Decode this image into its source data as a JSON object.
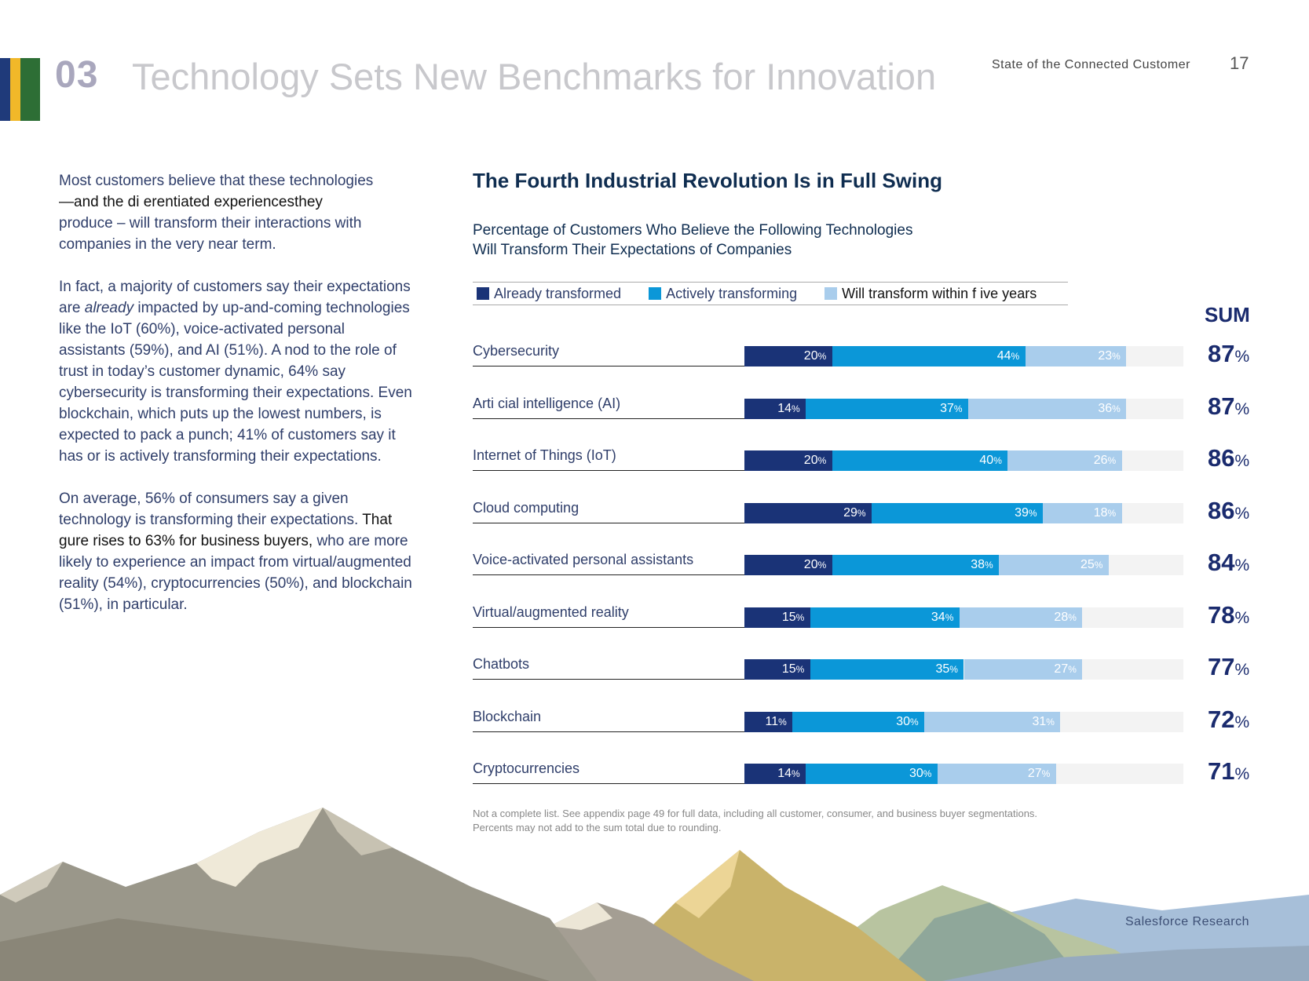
{
  "header": {
    "chapter_number": "03",
    "chapter_title": "Technology Sets New Benchmarks for Innovation",
    "report_name": "State of the Connected Customer",
    "page_number": "17"
  },
  "colors": {
    "stripe1": "#1f3a7a",
    "stripe2": "#f1b829",
    "stripe3": "#2d6e35",
    "stripe4": "#2d6e35",
    "already": "#1a3377",
    "actively": "#0b97d8",
    "within_five": "#a9cdec"
  },
  "body": {
    "p1_a": "Most customers believe that these technologies",
    "p1_b": "—and the di  erentiated experiencesthey",
    "p1_c": "produce – will transform their interactions with companies in the very near term.",
    "p2_a": "In fact, a majority of customers say their expectations are",
    "p2_em": "already",
    "p2_b": "impacted by up-and-coming technologies like the IoT (60%), voice-activated personal assistants (59%), and AI (51%). A nod to the role of trust in today’s customer dynamic, 64% say cybersecurity is transforming their expectations. Even blockchain, which puts up the lowest numbers, is expected to pack a punch; 41% of customers say it has or is actively transforming their expectations.",
    "p3_a": "On average, 56% of consumers say a given technology is transforming their expectations.",
    "p3_dark": "That   gure rises to 63%  for business buyers,",
    "p3_b": "who are more likely to experience an impact from virtual/augmented reality (54%), cryptocurrencies (50%), and blockchain (51%), in particular."
  },
  "chart_data": {
    "type": "bar",
    "orientation": "horizontal",
    "stacked": true,
    "title": "The Fourth Industrial Revolution Is in Full Swing",
    "subtitle_line1": "Percentage of Customers Who Believe the Following Technologies",
    "subtitle_line2": "Will Transform Their Expectations of Companies",
    "sum_header": "SUM",
    "unit": "%",
    "xlim": [
      0,
      100
    ],
    "legend": [
      "Already transformed",
      "Actively transforming",
      "Will transform within f ive years"
    ],
    "categories": [
      "Cybersecurity",
      "Arti  cial intelligence (AI)",
      "Internet of Things (IoT)",
      "Cloud computing",
      "Voice-activated personal assistants",
      "Virtual/augmented reality",
      "Chatbots",
      "Blockchain",
      "Cryptocurrencies"
    ],
    "series": [
      {
        "name": "Already transformed",
        "values": [
          20,
          14,
          20,
          29,
          20,
          15,
          15,
          11,
          14
        ]
      },
      {
        "name": "Actively transforming",
        "values": [
          44,
          37,
          40,
          39,
          38,
          34,
          35,
          30,
          30
        ]
      },
      {
        "name": "Will transform within f ive years",
        "values": [
          23,
          36,
          26,
          18,
          25,
          28,
          27,
          31,
          27
        ]
      }
    ],
    "sums": [
      87,
      87,
      86,
      86,
      84,
      78,
      77,
      72,
      71
    ]
  },
  "footnote": {
    "line1": "Not a complete list. See appendix page 49 for full data, including all customer, consumer, and business buyer segmentations.",
    "line2": "Percents may not add to the sum total due to rounding."
  },
  "brand": "Salesforce Research"
}
